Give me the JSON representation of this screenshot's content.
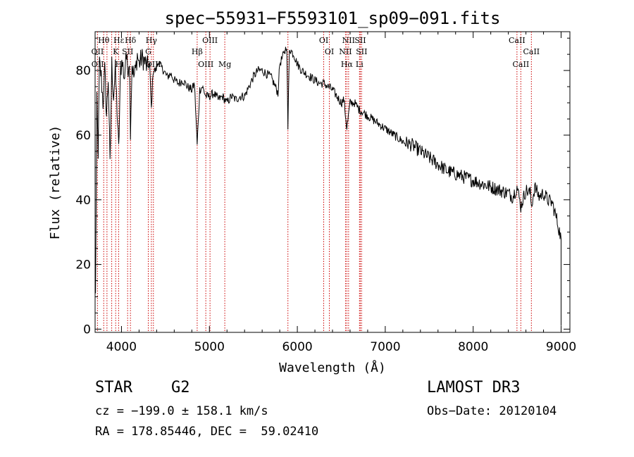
{
  "chart_data": {
    "type": "line",
    "title": "spec−55931−F5593101_sp09−091.fits",
    "xlabel": "Wavelength (Å)",
    "ylabel": "Flux (relative)",
    "xlim": [
      3700,
      9100
    ],
    "ylim": [
      -1,
      92
    ],
    "xticks": [
      4000,
      5000,
      6000,
      7000,
      8000,
      9000
    ],
    "yticks": [
      0,
      20,
      40,
      60,
      80
    ],
    "series": [
      {
        "name": "flux",
        "x": [
          3705,
          3720,
          3735,
          3750,
          3770,
          3790,
          3810,
          3830,
          3850,
          3870,
          3890,
          3910,
          3930,
          3950,
          3968,
          3990,
          4010,
          4030,
          4050,
          4070,
          4090,
          4102,
          4120,
          4140,
          4160,
          4180,
          4200,
          4230,
          4260,
          4290,
          4320,
          4340,
          4360,
          4390,
          4420,
          4450,
          4480,
          4520,
          4560,
          4600,
          4650,
          4700,
          4750,
          4800,
          4830,
          4861,
          4890,
          4920,
          4960,
          5000,
          5050,
          5100,
          5150,
          5200,
          5250,
          5300,
          5350,
          5400,
          5450,
          5500,
          5550,
          5600,
          5650,
          5700,
          5750,
          5780,
          5800,
          5830,
          5860,
          5880,
          5893,
          5910,
          5930,
          5960,
          6000,
          6050,
          6100,
          6150,
          6200,
          6250,
          6300,
          6350,
          6400,
          6450,
          6500,
          6530,
          6563,
          6600,
          6650,
          6700,
          6750,
          6800,
          6850,
          6900,
          6950,
          7000,
          7100,
          7200,
          7300,
          7400,
          7500,
          7600,
          7700,
          7800,
          7900,
          8000,
          8100,
          8200,
          8300,
          8400,
          8450,
          8498,
          8542,
          8600,
          8650,
          8662,
          8700,
          8750,
          8800,
          8850,
          8900,
          8950,
          9000
        ],
        "values": [
          10,
          70,
          55,
          82,
          78,
          70,
          80,
          66,
          78,
          50,
          82,
          72,
          80,
          68,
          55,
          80,
          84,
          76,
          86,
          80,
          84,
          62,
          82,
          78,
          80,
          85,
          82,
          84,
          83,
          81,
          82,
          68,
          80,
          80,
          83,
          81,
          80,
          78,
          79,
          77,
          76,
          77,
          75,
          74,
          76,
          57,
          74,
          75,
          72,
          72,
          73,
          71,
          72,
          70,
          72,
          71,
          72,
          72,
          75,
          78,
          80,
          80,
          79,
          78,
          75,
          73,
          82,
          84,
          86,
          88,
          62,
          87,
          86,
          85,
          82,
          80,
          79,
          78,
          77,
          76,
          76,
          75,
          74,
          72,
          70,
          71,
          62,
          70,
          70,
          68,
          67,
          66,
          65,
          64,
          63,
          62,
          60,
          58,
          57,
          55,
          53,
          51,
          49,
          48,
          47,
          46,
          45,
          44,
          43,
          42,
          41,
          44,
          38,
          43,
          42,
          38,
          44,
          41,
          42,
          40,
          39,
          34,
          28
        ]
      }
    ],
    "lines_top": [
      {
        "label": "Hθ",
        "x": 3798
      },
      {
        "label": "OII",
        "x": 3727
      },
      {
        "label": "OII",
        "x": 3729
      },
      {
        "label": "Hε",
        "x": 3970
      },
      {
        "label": "K",
        "x": 3934
      },
      {
        "label": "H",
        "x": 3968
      },
      {
        "label": "Hδ",
        "x": 4102
      },
      {
        "label": "SII",
        "x": 4070
      },
      {
        "label": "OIII",
        "x": 4363
      },
      {
        "label": "Hγ",
        "x": 4340
      },
      {
        "label": "G",
        "x": 4305
      },
      {
        "label": "OIII",
        "x": 4959
      },
      {
        "label": "OIII",
        "x": 5007
      },
      {
        "label": "Hβ",
        "x": 4861
      },
      {
        "label": "Mg",
        "x": 5175
      },
      {
        "label": "OI",
        "x": 6300
      },
      {
        "label": "OI",
        "x": 6364
      },
      {
        "label": "Hα",
        "x": 6563
      },
      {
        "label": "SII",
        "x": 6716
      },
      {
        "label": "NII",
        "x": 6548
      },
      {
        "label": "Li",
        "x": 6707
      },
      {
        "label": "NII",
        "x": 6583
      },
      {
        "label": "SII",
        "x": 6731
      },
      {
        "label": "CaII",
        "x": 8542
      },
      {
        "label": "CaII",
        "x": 8498
      },
      {
        "label": "CaII",
        "x": 8662
      }
    ],
    "line_markers_x": [
      3727,
      3798,
      3835,
      3889,
      3934,
      3968,
      4070,
      4102,
      4305,
      4340,
      4363,
      4861,
      4959,
      5007,
      5175,
      5893,
      6300,
      6364,
      6548,
      6563,
      6583,
      6707,
      6716,
      6731,
      8498,
      8542,
      8662
    ]
  },
  "info": {
    "class": "STAR",
    "subclass": "G2",
    "survey": "LAMOST DR3",
    "cz": "cz = −199.0 ± 158.1 km/s",
    "obs_date": "Obs−Date: 20120104",
    "radec": "RA = 178.85446, DEC =  59.02410"
  }
}
